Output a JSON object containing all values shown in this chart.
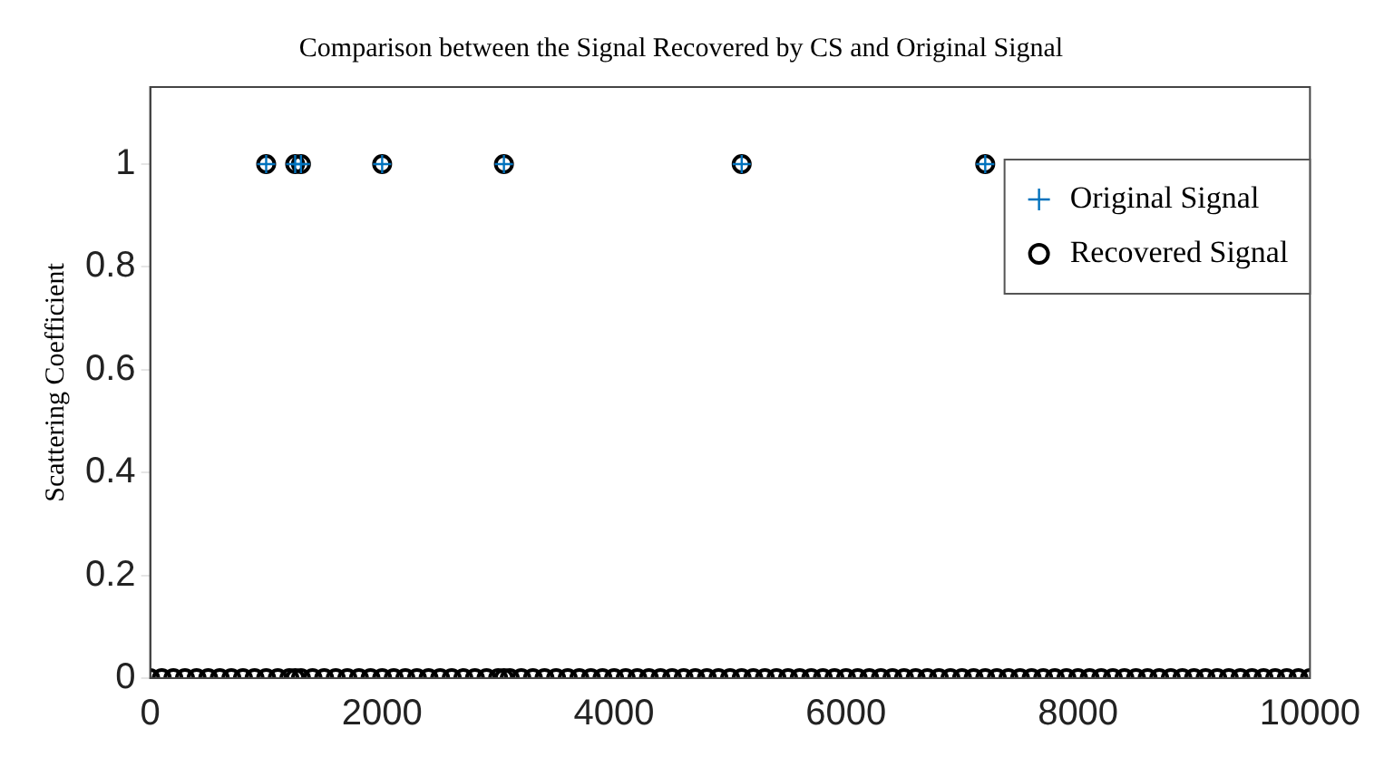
{
  "chart_data": {
    "type": "scatter",
    "title": "Comparison between the Signal Recovered by CS and Original Signal",
    "ylabel": "Scattering Coefficient",
    "xlim": [
      0,
      10000
    ],
    "xticks": [
      0,
      2000,
      4000,
      6000,
      8000,
      10000
    ],
    "ylim": [
      0,
      1.15
    ],
    "yticks": [
      0,
      0.2,
      0.4,
      0.6,
      0.8,
      1
    ],
    "grid": false,
    "legend": "top right",
    "series": [
      {
        "name": "Recovered Signal",
        "color": "#000000",
        "marker": "circle",
        "x": [
          0,
          100,
          200,
          300,
          400,
          500,
          600,
          700,
          800,
          900,
          1000,
          1100,
          1200,
          1250,
          1300,
          1400,
          1500,
          1600,
          1700,
          1800,
          1900,
          2000,
          2100,
          2200,
          2300,
          2400,
          2500,
          2600,
          2700,
          2800,
          2900,
          3000,
          3050,
          3100,
          3200,
          3300,
          3400,
          3500,
          3600,
          3700,
          3800,
          3900,
          4000,
          4100,
          4200,
          4300,
          4400,
          4500,
          4600,
          4700,
          4800,
          4900,
          5000,
          5100,
          5200,
          5300,
          5400,
          5500,
          5600,
          5700,
          5800,
          5900,
          6000,
          6100,
          6200,
          6300,
          6400,
          6500,
          6600,
          6700,
          6800,
          6900,
          7000,
          7100,
          7200,
          7300,
          7400,
          7500,
          7600,
          7700,
          7800,
          7900,
          8000,
          8100,
          8200,
          8300,
          8400,
          8500,
          8600,
          8700,
          8800,
          8900,
          9000,
          9100,
          9200,
          9300,
          9400,
          9500,
          9600,
          9700,
          9800,
          9900,
          10000,
          1000,
          1250,
          1300,
          2000,
          3050,
          5100,
          7200
        ],
        "values": [
          0,
          0,
          0,
          0,
          0,
          0,
          0,
          0,
          0,
          0,
          0,
          0,
          0,
          0,
          0,
          0,
          0,
          0,
          0,
          0,
          0,
          0,
          0,
          0,
          0,
          0,
          0,
          0,
          0,
          0,
          0,
          0,
          0,
          0,
          0,
          0,
          0,
          0,
          0,
          0,
          0,
          0,
          0,
          0,
          0,
          0,
          0,
          0,
          0,
          0,
          0,
          0,
          0,
          0,
          0,
          0,
          0,
          0,
          0,
          0,
          0,
          0,
          0,
          0,
          0,
          0,
          0,
          0,
          0,
          0,
          0,
          0,
          0,
          0,
          0,
          0,
          0,
          0,
          0,
          0,
          0,
          0,
          0,
          0,
          0,
          0,
          0,
          0,
          0,
          0,
          0,
          0,
          0,
          0,
          0,
          0,
          0,
          0,
          0,
          0,
          0,
          0,
          0,
          1,
          1,
          1,
          1,
          1,
          1,
          1
        ]
      },
      {
        "name": "Original Signal",
        "color": "#0072bd",
        "marker": "cross",
        "x": [
          1000,
          1250,
          1300,
          2000,
          3050,
          5100,
          7200
        ],
        "values": [
          1,
          1,
          1,
          1,
          1,
          1,
          1
        ]
      }
    ]
  }
}
